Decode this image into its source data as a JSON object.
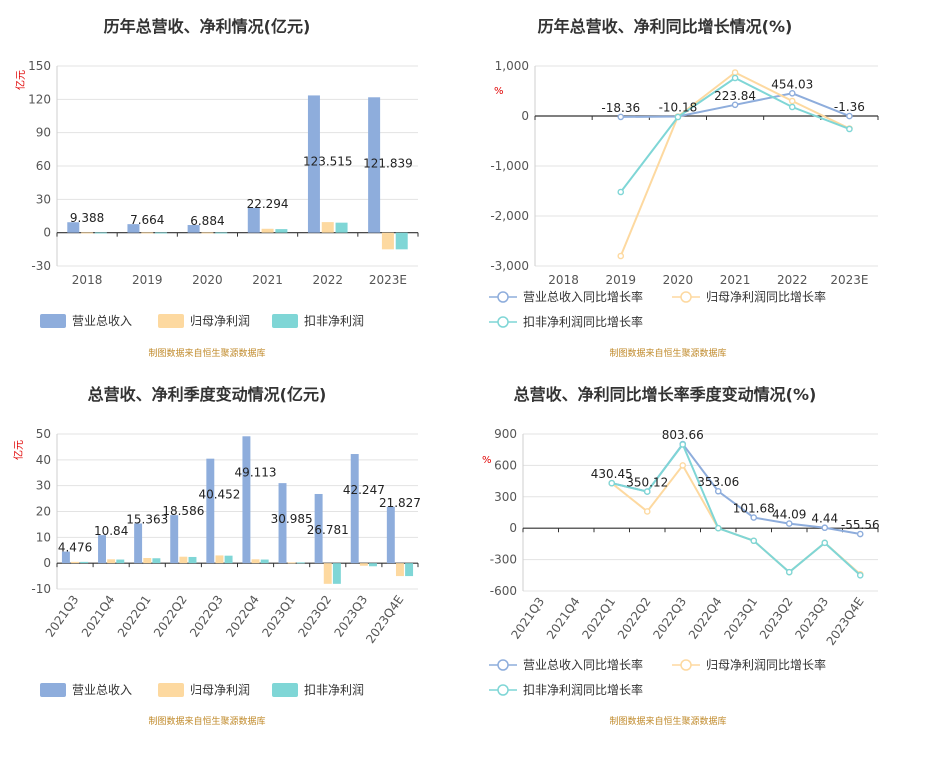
{
  "colors": {
    "revenue": "#8eaddc",
    "parent": "#fdd9a0",
    "deducted": "#7fd6d6",
    "axis": "#333333",
    "grid": "#e3e3e3"
  },
  "source_note": "制图数据来自恒生聚源数据库",
  "chart_data": [
    {
      "type": "bar",
      "title": "历年总营收、净利情况(亿元)",
      "unit": "亿元",
      "categories": [
        "2018",
        "2019",
        "2020",
        "2021",
        "2022",
        "2023E"
      ],
      "ylim": [
        -30,
        150
      ],
      "yticks": [
        -30,
        0,
        30,
        60,
        90,
        120,
        150
      ],
      "series": [
        {
          "name": "营业总收入",
          "values": [
            9.388,
            7.664,
            6.884,
            22.294,
            123.515,
            121.839
          ],
          "labels": [
            "9.388",
            "7.664",
            "6.884",
            "22.294",
            "123.515",
            "121.839"
          ]
        },
        {
          "name": "归母净利润",
          "values": [
            0.2,
            0.2,
            0.2,
            3.5,
            9.5,
            -15
          ]
        },
        {
          "name": "扣非净利润",
          "values": [
            0.2,
            0.2,
            0.2,
            3.2,
            9.0,
            -15
          ]
        }
      ],
      "legend": "bottom"
    },
    {
      "type": "line",
      "title": "历年总营收、净利同比增长情况(%)",
      "unit": "%",
      "categories": [
        "2018",
        "2019",
        "2020",
        "2021",
        "2022",
        "2023E"
      ],
      "ylim": [
        -3000,
        1000
      ],
      "yticks": [
        -3000,
        -2000,
        -1000,
        0,
        1000
      ],
      "ytick_labels": [
        "-3,000",
        "-2,000",
        "-1,000",
        "0",
        "1,000"
      ],
      "series": [
        {
          "name": "营业总收入同比增长率",
          "values": [
            null,
            -18.36,
            -10.18,
            223.84,
            454.03,
            -1.36
          ],
          "labels": [
            "",
            "-18.36",
            "-10.18",
            "223.84",
            "454.03",
            "-1.36"
          ]
        },
        {
          "name": "归母净利润同比增长率",
          "values": [
            null,
            -2800,
            -10,
            870,
            300,
            -250
          ]
        },
        {
          "name": "扣非净利润同比增长率",
          "values": [
            null,
            -1520,
            -20,
            760,
            180,
            -260
          ]
        }
      ],
      "legend": "bottom"
    },
    {
      "type": "bar",
      "title": "总营收、净利季度变动情况(亿元)",
      "unit": "亿元",
      "categories": [
        "2021Q3",
        "2021Q4",
        "2022Q1",
        "2022Q2",
        "2022Q3",
        "2022Q4",
        "2023Q1",
        "2023Q2",
        "2023Q3",
        "2023Q4E"
      ],
      "ylim": [
        -10,
        50
      ],
      "yticks": [
        -10,
        0,
        10,
        20,
        30,
        40,
        50
      ],
      "series": [
        {
          "name": "营业总收入",
          "values": [
            4.476,
            10.84,
            15.363,
            18.586,
            40.452,
            49.113,
            30.985,
            26.781,
            42.247,
            21.827
          ],
          "labels": [
            "4.476",
            "10.84",
            "15.363",
            "18.586",
            "40.452",
            "49.113",
            "30.985",
            "26.781",
            "42.247",
            "21.827"
          ]
        },
        {
          "name": "归母净利润",
          "values": [
            0.5,
            1.5,
            2.0,
            2.5,
            3.0,
            1.5,
            0.3,
            -8,
            -1,
            -5
          ]
        },
        {
          "name": "扣非净利润",
          "values": [
            0.5,
            1.4,
            1.9,
            2.4,
            2.9,
            1.4,
            0.3,
            -8,
            -1.2,
            -5
          ]
        }
      ],
      "legend": "bottom"
    },
    {
      "type": "line",
      "title": "总营收、净利同比增长率季度变动情况(%)",
      "unit": "%",
      "categories": [
        "2021Q3",
        "2021Q4",
        "2022Q1",
        "2022Q2",
        "2022Q3",
        "2022Q4",
        "2023Q1",
        "2023Q2",
        "2023Q3",
        "2023Q4E"
      ],
      "ylim": [
        -600,
        900
      ],
      "yticks": [
        -600,
        -300,
        0,
        300,
        600,
        900
      ],
      "series": [
        {
          "name": "营业总收入同比增长率",
          "values": [
            null,
            null,
            430.45,
            350.12,
            803.66,
            353.06,
            101.68,
            44.09,
            4.44,
            -55.56
          ],
          "labels": [
            "",
            "",
            "430.45",
            "350.12",
            "803.66",
            "353.06",
            "101.68",
            "44.09",
            "4.44",
            "-55.56"
          ]
        },
        {
          "name": "归母净利润同比增长率",
          "values": [
            null,
            null,
            430,
            160,
            600,
            0,
            -120,
            -420,
            -140,
            -440
          ]
        },
        {
          "name": "扣非净利润同比增长率",
          "values": [
            null,
            null,
            430,
            350,
            800,
            0,
            -120,
            -420,
            -140,
            -450
          ]
        }
      ],
      "legend": "bottom"
    }
  ]
}
